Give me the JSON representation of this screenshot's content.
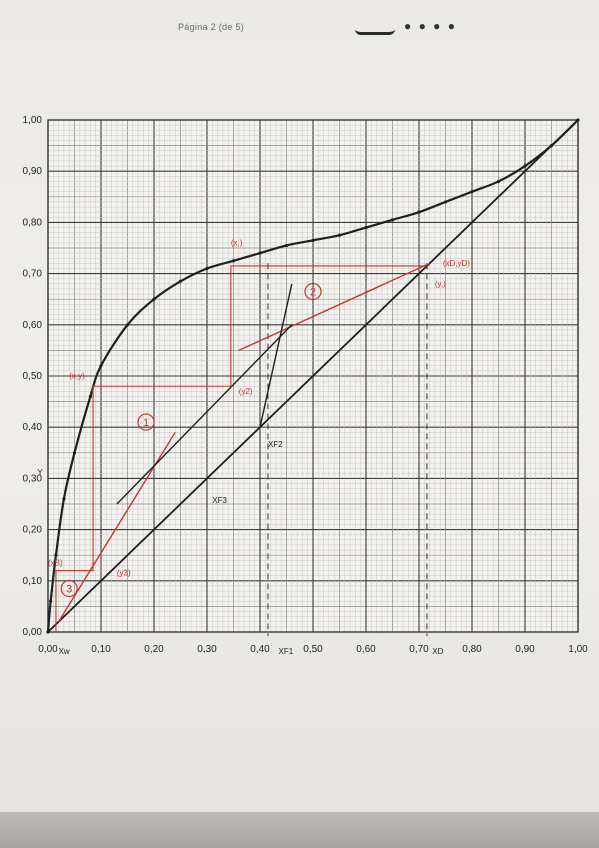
{
  "header": {
    "text": "Página 2 (de 5)",
    "dots": "● ● ● ●"
  },
  "chart_data": {
    "type": "line",
    "title": "",
    "xlabel": "",
    "ylabel": "",
    "xlim": [
      0,
      1
    ],
    "ylim": [
      0,
      1
    ],
    "grid": true,
    "x_ticks": [
      "0,00",
      "0,10",
      "0,20",
      "0,30",
      "0,40",
      "0,50",
      "0,60",
      "0,70",
      "0,80",
      "0,90",
      "1,00"
    ],
    "y_ticks": [
      "0,00",
      "0,10",
      "0,20",
      "0,30",
      "0,40",
      "0,50",
      "0,60",
      "0,70",
      "0,80",
      "0,90",
      "1,00"
    ],
    "series": [
      {
        "role": "equilibrium",
        "color": "#1f1f1f",
        "x": [
          0.0,
          0.005,
          0.015,
          0.03,
          0.05,
          0.08,
          0.1,
          0.15,
          0.2,
          0.25,
          0.3,
          0.35,
          0.4,
          0.45,
          0.5,
          0.55,
          0.6,
          0.65,
          0.7,
          0.75,
          0.8,
          0.85,
          0.9,
          0.95,
          1.0
        ],
        "y": [
          0.0,
          0.06,
          0.15,
          0.26,
          0.35,
          0.46,
          0.52,
          0.6,
          0.65,
          0.685,
          0.71,
          0.725,
          0.74,
          0.755,
          0.765,
          0.775,
          0.79,
          0.805,
          0.82,
          0.84,
          0.86,
          0.88,
          0.91,
          0.95,
          1.0
        ]
      },
      {
        "role": "diagonal y=x",
        "color": "#1f1f1f",
        "x": [
          0.0,
          1.0
        ],
        "y": [
          0.0,
          1.0
        ]
      },
      {
        "role": "operating line (upper)",
        "color": "#c0392b",
        "x": [
          0.36,
          0.72
        ],
        "y": [
          0.55,
          0.72
        ]
      },
      {
        "role": "operating line (lower)",
        "color": "#c0392b",
        "x": [
          0.02,
          0.24
        ],
        "y": [
          0.02,
          0.39
        ]
      },
      {
        "role": "q-line",
        "color": "#1f1f1f",
        "x": [
          0.4,
          0.46
        ],
        "y": [
          0.4,
          0.68
        ]
      },
      {
        "role": "construction line",
        "color": "#1f1f1f",
        "x": [
          0.13,
          0.46
        ],
        "y": [
          0.25,
          0.6
        ]
      },
      {
        "role": "stage steps",
        "color": "#c0392b",
        "x": [
          0.715,
          0.345,
          0.345,
          0.085,
          0.085,
          0.015,
          0.015
        ],
        "y": [
          0.715,
          0.715,
          0.48,
          0.48,
          0.12,
          0.12,
          0.0
        ]
      }
    ],
    "vertical_markers": [
      {
        "x": 0.715,
        "style": "dashed"
      },
      {
        "x": 0.415,
        "style": "dashed"
      }
    ],
    "annotations": {
      "stage_labels": [
        {
          "text": "1",
          "x": 0.185,
          "y": 0.41
        },
        {
          "text": "2",
          "x": 0.5,
          "y": 0.665
        },
        {
          "text": "3",
          "x": 0.04,
          "y": 0.085
        }
      ],
      "red_labels": [
        {
          "text": "(x,)",
          "x": 0.345,
          "y": 0.755
        },
        {
          "text": "(xD,yD)",
          "x": 0.745,
          "y": 0.715
        },
        {
          "text": "(y,)",
          "x": 0.73,
          "y": 0.675
        },
        {
          "text": "(x,y)",
          "x": 0.04,
          "y": 0.495
        },
        {
          "text": "(y2)",
          "x": 0.36,
          "y": 0.465
        },
        {
          "text": "(xB)",
          "x": 0.0,
          "y": 0.13
        },
        {
          "text": "(y3)",
          "x": 0.13,
          "y": 0.11
        }
      ],
      "black_labels": [
        {
          "text": "XF2",
          "x": 0.415,
          "y": 0.385
        },
        {
          "text": "XF3",
          "x": 0.31,
          "y": 0.275
        },
        {
          "text": "Y",
          "x": -0.02,
          "y": 0.33
        },
        {
          "text": "Xw",
          "x": 0.02,
          "y": -0.02
        },
        {
          "text": "XF1",
          "x": 0.435,
          "y": -0.02
        },
        {
          "text": "XD",
          "x": 0.725,
          "y": -0.02
        }
      ]
    }
  }
}
